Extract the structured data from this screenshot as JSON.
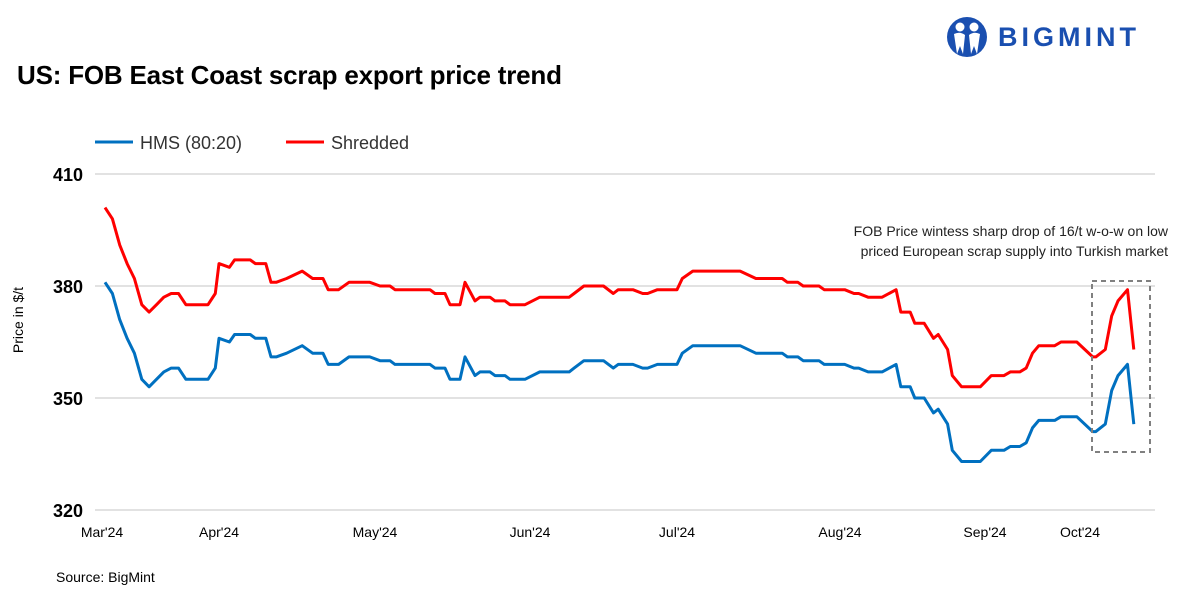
{
  "title": "US: FOB East Coast scrap export price trend",
  "source": "Source: BigMint",
  "logo": {
    "text": "BIGMINT",
    "color": "#1a4fb0"
  },
  "chart_data": {
    "type": "line",
    "title": "US: FOB East Coast scrap export price trend",
    "ylabel": "Price in $/t",
    "xlabel": "",
    "ylim": [
      320,
      410
    ],
    "yticks": [
      320,
      350,
      380,
      410
    ],
    "xtick_labels": [
      {
        "date": "2024-03-01",
        "label": "Mar'24"
      },
      {
        "date": "2024-04-01",
        "label": "Apr'24"
      },
      {
        "date": "2024-05-01",
        "label": "May'24"
      },
      {
        "date": "2024-06-01",
        "label": "Jun'24"
      },
      {
        "date": "2024-07-01",
        "label": "Jul'24"
      },
      {
        "date": "2024-08-01",
        "label": "Aug'24"
      },
      {
        "date": "2024-09-01",
        "label": "Sep'24"
      },
      {
        "date": "2024-10-01",
        "label": "Oct'24"
      }
    ],
    "grid": "horizontal",
    "legend_placement": "top-left",
    "x": [
      "2024-03-01",
      "2024-03-03",
      "2024-03-05",
      "2024-03-07",
      "2024-03-09",
      "2024-03-11",
      "2024-03-13",
      "2024-03-15",
      "2024-03-17",
      "2024-03-19",
      "2024-03-21",
      "2024-03-23",
      "2024-03-29",
      "2024-03-31",
      "2024-04-01",
      "2024-04-03",
      "2024-04-04",
      "2024-04-07",
      "2024-04-08",
      "2024-04-10",
      "2024-04-11",
      "2024-04-12",
      "2024-04-14",
      "2024-04-17",
      "2024-04-19",
      "2024-04-21",
      "2024-04-22",
      "2024-04-24",
      "2024-04-26",
      "2024-04-30",
      "2024-05-02",
      "2024-05-04",
      "2024-05-05",
      "2024-05-12",
      "2024-05-13",
      "2024-05-15",
      "2024-05-16",
      "2024-05-18",
      "2024-05-19",
      "2024-05-21",
      "2024-05-22",
      "2024-05-24",
      "2024-05-25",
      "2024-05-27",
      "2024-05-28",
      "2024-05-31",
      "2024-06-03",
      "2024-06-09",
      "2024-06-10",
      "2024-06-12",
      "2024-06-16",
      "2024-06-18",
      "2024-06-19",
      "2024-06-22",
      "2024-06-24",
      "2024-06-25",
      "2024-06-27",
      "2024-07-01",
      "2024-07-02",
      "2024-07-04",
      "2024-07-13",
      "2024-07-16",
      "2024-07-21",
      "2024-07-22",
      "2024-07-24",
      "2024-07-25",
      "2024-07-28",
      "2024-07-29",
      "2024-08-01",
      "2024-08-02",
      "2024-08-04",
      "2024-08-05",
      "2024-08-07",
      "2024-08-10",
      "2024-08-13",
      "2024-08-14",
      "2024-08-16",
      "2024-08-17",
      "2024-08-19",
      "2024-08-21",
      "2024-08-22",
      "2024-08-24",
      "2024-08-25",
      "2024-08-27",
      "2024-08-31",
      "2024-09-03",
      "2024-09-07",
      "2024-09-09",
      "2024-09-12",
      "2024-09-14",
      "2024-09-16",
      "2024-09-18",
      "2024-09-23",
      "2024-09-25",
      "2024-09-30",
      "2024-10-05",
      "2024-10-06",
      "2024-10-09",
      "2024-10-11",
      "2024-10-13",
      "2024-10-16",
      "2024-10-18"
    ],
    "series": [
      {
        "name": "HMS (80:20)",
        "color": "#0070c0",
        "values": [
          381,
          378,
          371,
          366,
          362,
          355,
          353,
          355,
          357,
          358,
          358,
          355,
          355,
          358,
          366,
          365,
          367,
          367,
          366,
          366,
          361,
          361,
          362,
          364,
          362,
          362,
          359,
          359,
          361,
          361,
          360,
          360,
          359,
          359,
          358,
          358,
          355,
          355,
          361,
          356,
          357,
          357,
          356,
          356,
          355,
          355,
          357,
          357,
          358,
          360,
          360,
          358,
          359,
          359,
          358,
          358,
          359,
          359,
          362,
          364,
          364,
          362,
          362,
          361,
          361,
          360,
          360,
          359,
          359,
          359,
          358,
          358,
          357,
          357,
          359,
          353,
          353,
          350,
          350,
          346,
          347,
          343,
          336,
          333,
          333,
          336,
          336,
          337,
          337,
          338,
          342,
          344,
          344,
          345,
          345,
          341,
          341,
          343,
          352,
          356,
          359,
          343
        ]
      },
      {
        "name": "Shredded",
        "color": "#ff0000",
        "values": [
          401,
          398,
          391,
          386,
          382,
          375,
          373,
          375,
          377,
          378,
          378,
          375,
          375,
          378,
          386,
          385,
          387,
          387,
          386,
          386,
          381,
          381,
          382,
          384,
          382,
          382,
          379,
          379,
          381,
          381,
          380,
          380,
          379,
          379,
          378,
          378,
          375,
          375,
          381,
          376,
          377,
          377,
          376,
          376,
          375,
          375,
          377,
          377,
          378,
          380,
          380,
          378,
          379,
          379,
          378,
          378,
          379,
          379,
          382,
          384,
          384,
          382,
          382,
          381,
          381,
          380,
          380,
          379,
          379,
          379,
          378,
          378,
          377,
          377,
          379,
          373,
          373,
          370,
          370,
          366,
          367,
          363,
          356,
          353,
          353,
          356,
          356,
          357,
          357,
          358,
          362,
          364,
          364,
          365,
          365,
          361,
          361,
          363,
          372,
          376,
          379,
          363
        ]
      }
    ],
    "annotation": {
      "lines": [
        "FOB Price wintess sharp drop of 16/t w-o-w on low",
        "priced European scrap supply into Turkish market"
      ],
      "highlight_from": "2024-10-05",
      "highlight_to": "2024-10-18",
      "highlight_style": "dashed grey box"
    }
  }
}
